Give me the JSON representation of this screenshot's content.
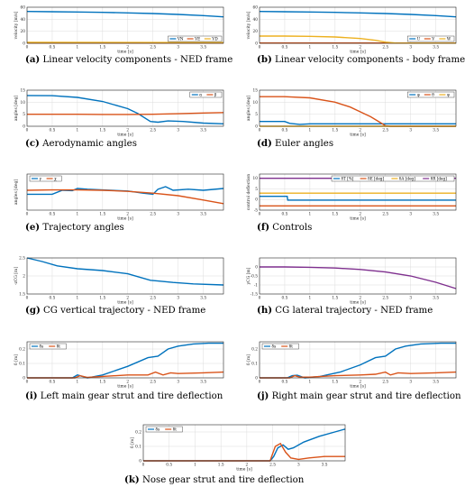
{
  "colors": {
    "blue": "#0072BD",
    "orange": "#D95319",
    "yellow": "#EDB120",
    "purple": "#7E2F8E"
  },
  "chart_data": [
    {
      "type": "line",
      "caption_letter": "(a)",
      "caption_text": "Linear velocity components - NED frame",
      "xlabel": "time [s]",
      "ylabel": "velocity [m/s]",
      "xlim": [
        0,
        3.9
      ],
      "ylim": [
        0,
        60
      ],
      "xticks": [
        "0",
        "0.5",
        "1",
        "1.5",
        "2",
        "2.5",
        "3",
        "3.5"
      ],
      "yticks": [
        "0",
        "20",
        "40",
        "60"
      ],
      "legend_position": "bottom-right",
      "series": [
        {
          "name": "VN",
          "color": "#0072BD",
          "x": [
            0,
            0.5,
            1,
            1.5,
            2,
            2.5,
            3,
            3.5,
            3.9
          ],
          "y": [
            53,
            52.5,
            52,
            51.5,
            50.5,
            49.5,
            48,
            46,
            44
          ]
        },
        {
          "name": "VE",
          "color": "#D95319",
          "x": [
            0,
            3.9
          ],
          "y": [
            0.5,
            0.5
          ]
        },
        {
          "name": "VD",
          "color": "#EDB120",
          "x": [
            0,
            3.9
          ],
          "y": [
            1.5,
            1.2
          ]
        }
      ]
    },
    {
      "type": "line",
      "caption_letter": "(b)",
      "caption_text": "Linear velocity components - body frame",
      "xlabel": "time [s]",
      "ylabel": "velocity [m/s]",
      "xlim": [
        0,
        3.9
      ],
      "ylim": [
        0,
        60
      ],
      "xticks": [
        "0",
        "0.5",
        "1",
        "1.5",
        "2",
        "2.5",
        "3",
        "3.5"
      ],
      "yticks": [
        "0",
        "20",
        "40",
        "60"
      ],
      "legend_position": "bottom-right",
      "series": [
        {
          "name": "U",
          "color": "#0072BD",
          "x": [
            0,
            0.5,
            1,
            1.5,
            2,
            2.5,
            3,
            3.5,
            3.9
          ],
          "y": [
            53,
            52.5,
            52,
            51.5,
            50.5,
            49.5,
            48,
            46,
            44
          ]
        },
        {
          "name": "V",
          "color": "#D95319",
          "x": [
            0,
            3.9
          ],
          "y": [
            0.5,
            0.5
          ]
        },
        {
          "name": "W",
          "color": "#EDB120",
          "x": [
            0,
            0.5,
            1,
            1.5,
            2,
            2.3,
            2.5,
            2.7,
            3,
            3.9
          ],
          "y": [
            12,
            12,
            11.5,
            10.5,
            8,
            5,
            2,
            0.5,
            0.3,
            0.3
          ]
        }
      ]
    },
    {
      "type": "line",
      "caption_letter": "(c)",
      "caption_text": "Aerodynamic angles",
      "xlabel": "time [s]",
      "ylabel": "angles [deg]",
      "xlim": [
        0,
        3.9
      ],
      "ylim": [
        0,
        15
      ],
      "xticks": [
        "0",
        "0.5",
        "1",
        "1.5",
        "2",
        "2.5",
        "3",
        "3.5"
      ],
      "yticks": [
        "0",
        "5",
        "10",
        "15"
      ],
      "legend_position": "top-right",
      "series": [
        {
          "name": "α",
          "color": "#0072BD",
          "x": [
            0,
            0.5,
            1,
            1.5,
            2,
            2.2,
            2.45,
            2.6,
            2.8,
            3.1,
            3.5,
            3.9
          ],
          "y": [
            12.8,
            12.7,
            12,
            10.3,
            7.3,
            5.3,
            2,
            1.7,
            2.2,
            2,
            1.3,
            1
          ]
        },
        {
          "name": "β",
          "color": "#D95319",
          "x": [
            0,
            0.5,
            1,
            1.5,
            2,
            2.5,
            3,
            3.5,
            3.9
          ],
          "y": [
            5,
            5,
            5,
            4.9,
            4.9,
            5,
            5.2,
            5.5,
            5.7
          ]
        }
      ]
    },
    {
      "type": "line",
      "caption_letter": "(d)",
      "caption_text": "Euler angles",
      "xlabel": "time [s]",
      "ylabel": "angles [deg]",
      "xlim": [
        0,
        3.9
      ],
      "ylim": [
        0,
        15
      ],
      "xticks": [
        "0",
        "0.5",
        "1",
        "1.5",
        "2",
        "2.5",
        "3",
        "3.5"
      ],
      "yticks": [
        "0",
        "5",
        "10",
        "15"
      ],
      "legend_position": "top-right",
      "series": [
        {
          "name": "φ",
          "color": "#0072BD",
          "x": [
            0,
            0.5,
            0.6,
            0.8,
            1,
            1.5,
            2,
            2.5,
            3,
            3.9
          ],
          "y": [
            2,
            2,
            1.2,
            0.8,
            1,
            1,
            1,
            1,
            1,
            1
          ]
        },
        {
          "name": "θ",
          "color": "#D95319",
          "x": [
            0,
            0.5,
            1,
            1.5,
            1.8,
            2,
            2.2,
            2.4,
            2.5,
            2.6,
            3.9
          ],
          "y": [
            12.3,
            12.3,
            11.8,
            10,
            8,
            6,
            4,
            1.5,
            0.2,
            0,
            0
          ]
        },
        {
          "name": "ψ",
          "color": "#EDB120",
          "x": [
            0,
            3.9
          ],
          "y": [
            0,
            0
          ]
        }
      ]
    },
    {
      "type": "line",
      "caption_letter": "(e)",
      "caption_text": "Trajectory angles",
      "xlabel": "time [s]",
      "ylabel": "angles [deg]",
      "xlim": [
        0,
        3.9
      ],
      "ylim": [
        -5,
        5
      ],
      "xticks": [
        "0",
        "0.5",
        "1",
        "1.5",
        "2",
        "2.5",
        "3",
        "3.5"
      ],
      "yticks": [],
      "legend_position": "top-left",
      "series": [
        {
          "name": "γ",
          "color": "#0072BD",
          "x": [
            0,
            0.5,
            0.7,
            0.9,
            1,
            1.2,
            1.5,
            2,
            2.3,
            2.5,
            2.6,
            2.75,
            2.9,
            3.2,
            3.5,
            3.9
          ],
          "y": [
            -0.6,
            -0.6,
            0.5,
            0.4,
            1,
            0.8,
            0.6,
            0.3,
            -0.3,
            -0.6,
            0.8,
            1.5,
            0.5,
            0.8,
            0.5,
            1
          ]
        },
        {
          "name": "χ",
          "color": "#D95319",
          "x": [
            0,
            0.5,
            1,
            1.5,
            2,
            2.5,
            3,
            3.5,
            3.9
          ],
          "y": [
            0.5,
            0.6,
            0.6,
            0.5,
            0.2,
            -0.3,
            -1,
            -2.2,
            -3.2
          ]
        }
      ]
    },
    {
      "type": "line",
      "caption_letter": "(f)",
      "caption_text": "Controls",
      "xlabel": "time [s]",
      "ylabel": "control deflection",
      "xlim": [
        0,
        3.9
      ],
      "ylim": [
        -5,
        12
      ],
      "xticks": [
        "0",
        "0.5",
        "1",
        "1.5",
        "2",
        "2.5",
        "3",
        "3.5"
      ],
      "yticks": [
        "-5",
        "0",
        "5",
        "10"
      ],
      "legend_position": "top-right",
      "series": [
        {
          "name": "δT [%]",
          "color": "#0072BD",
          "x": [
            0,
            0.55,
            0.56,
            3.9
          ],
          "y": [
            1.5,
            1.5,
            -0.3,
            -0.3
          ]
        },
        {
          "name": "δE [deg]",
          "color": "#D95319",
          "x": [
            0,
            3.9
          ],
          "y": [
            -3,
            -3
          ]
        },
        {
          "name": "δA [deg]",
          "color": "#EDB120",
          "x": [
            0,
            3.9
          ],
          "y": [
            3,
            3
          ]
        },
        {
          "name": "δR [deg]",
          "color": "#7E2F8E",
          "x": [
            0,
            3.9
          ],
          "y": [
            10,
            10
          ]
        }
      ]
    },
    {
      "type": "line",
      "caption_letter": "(g)",
      "caption_text": "CG vertical trajectory - NED frame",
      "xlabel": "time [s]",
      "ylabel": "-zCG [m]",
      "xlim": [
        0,
        3.9
      ],
      "ylim": [
        1.5,
        2.5
      ],
      "xticks": [
        "0",
        "0.5",
        "1",
        "1.5",
        "2",
        "2.5",
        "3",
        "3.5"
      ],
      "yticks": [
        "1.5",
        "2",
        "2.5"
      ],
      "legend_position": "none",
      "series": [
        {
          "name": "",
          "color": "#0072BD",
          "x": [
            0,
            0.3,
            0.6,
            1,
            1.5,
            2,
            2.2,
            2.45,
            2.6,
            2.9,
            3.3,
            3.9
          ],
          "y": [
            2.5,
            2.4,
            2.28,
            2.2,
            2.15,
            2.06,
            1.98,
            1.88,
            1.86,
            1.82,
            1.78,
            1.75
          ]
        }
      ]
    },
    {
      "type": "line",
      "caption_letter": "(h)",
      "caption_text": "CG lateral trajectory - NED frame",
      "xlabel": "time [s]",
      "ylabel": "yCG [m]",
      "xlim": [
        0,
        3.9
      ],
      "ylim": [
        -1.5,
        0.5
      ],
      "xticks": [
        "0",
        "0.5",
        "1",
        "1.5",
        "2",
        "2.5",
        "3",
        "3.5"
      ],
      "yticks": [
        "-1.5",
        "-1",
        "-0.5",
        "0"
      ],
      "legend_position": "none",
      "series": [
        {
          "name": "",
          "color": "#7E2F8E",
          "x": [
            0,
            0.5,
            1,
            1.5,
            2,
            2.5,
            3,
            3.5,
            3.9
          ],
          "y": [
            0,
            0,
            -0.02,
            -0.06,
            -0.14,
            -0.28,
            -0.5,
            -0.85,
            -1.2
          ]
        }
      ]
    },
    {
      "type": "line",
      "caption_letter": "(i)",
      "caption_text": "Left main gear strut and tire deflection",
      "xlabel": "time [s]",
      "ylabel": "δ [m]",
      "xlim": [
        0,
        3.9
      ],
      "ylim": [
        0,
        0.25
      ],
      "xticks": [
        "0",
        "0.5",
        "1",
        "1.5",
        "2",
        "2.5",
        "3",
        "3.5"
      ],
      "yticks": [
        "0",
        "0.1",
        "0.2"
      ],
      "legend_position": "top-left",
      "series": [
        {
          "name": "δs",
          "color": "#0072BD",
          "x": [
            0,
            0.9,
            1,
            1.1,
            1.2,
            1.5,
            2,
            2.4,
            2.6,
            2.8,
            3,
            3.3,
            3.6,
            3.9
          ],
          "y": [
            0,
            0,
            0.02,
            0.01,
            0,
            0.02,
            0.08,
            0.14,
            0.15,
            0.2,
            0.22,
            0.235,
            0.24,
            0.24
          ]
        },
        {
          "name": "δt",
          "color": "#D95319",
          "x": [
            0,
            0.95,
            1.05,
            1.2,
            1.5,
            2,
            2.4,
            2.55,
            2.7,
            2.85,
            3,
            3.5,
            3.9
          ],
          "y": [
            0,
            0,
            0.015,
            0.003,
            0.01,
            0.02,
            0.02,
            0.04,
            0.02,
            0.035,
            0.03,
            0.035,
            0.04
          ]
        }
      ]
    },
    {
      "type": "line",
      "caption_letter": "(j)",
      "caption_text": "Right main gear strut and tire deflection",
      "xlabel": "time [s]",
      "ylabel": "δ [m]",
      "xlim": [
        0,
        3.9
      ],
      "ylim": [
        0,
        0.25
      ],
      "xticks": [
        "0",
        "0.5",
        "1",
        "1.5",
        "2",
        "2.5",
        "3",
        "3.5"
      ],
      "yticks": [
        "0",
        "0.1",
        "0.2"
      ],
      "legend_position": "top-left",
      "series": [
        {
          "name": "δs",
          "color": "#0072BD",
          "x": [
            0,
            0.55,
            0.65,
            0.75,
            0.9,
            1.2,
            1.6,
            2,
            2.3,
            2.5,
            2.7,
            2.9,
            3.2,
            3.6,
            3.9
          ],
          "y": [
            0,
            0,
            0.015,
            0.018,
            0,
            0.01,
            0.04,
            0.09,
            0.14,
            0.15,
            0.2,
            0.22,
            0.235,
            0.24,
            0.24
          ]
        },
        {
          "name": "δt",
          "color": "#D95319",
          "x": [
            0,
            0.6,
            0.7,
            0.8,
            1,
            1.5,
            2,
            2.3,
            2.5,
            2.6,
            2.75,
            3,
            3.5,
            3.9
          ],
          "y": [
            0,
            0,
            0.015,
            0.005,
            0.005,
            0.015,
            0.02,
            0.025,
            0.04,
            0.02,
            0.035,
            0.03,
            0.035,
            0.04
          ]
        }
      ]
    },
    {
      "type": "line",
      "caption_letter": "(k)",
      "caption_text": "Nose gear strut and tire deflection",
      "xlabel": "time [s]",
      "ylabel": "δ [m]",
      "xlim": [
        0,
        3.9
      ],
      "ylim": [
        0,
        0.25
      ],
      "xticks": [
        "0",
        "0.5",
        "1",
        "1.5",
        "2",
        "2.5",
        "3",
        "3.5"
      ],
      "yticks": [
        "0",
        "0.1",
        "0.2"
      ],
      "legend_position": "top-left",
      "series": [
        {
          "name": "δs",
          "color": "#0072BD",
          "x": [
            0,
            2.45,
            2.52,
            2.6,
            2.7,
            2.8,
            2.9,
            3.1,
            3.4,
            3.7,
            3.9
          ],
          "y": [
            0,
            0,
            0.03,
            0.09,
            0.11,
            0.08,
            0.09,
            0.13,
            0.17,
            0.2,
            0.22
          ]
        },
        {
          "name": "δt",
          "color": "#D95319",
          "x": [
            0,
            2.45,
            2.55,
            2.65,
            2.75,
            2.85,
            3,
            3.2,
            3.5,
            3.9
          ],
          "y": [
            0,
            0,
            0.1,
            0.12,
            0.06,
            0.02,
            0.01,
            0.02,
            0.03,
            0.03
          ]
        }
      ]
    }
  ]
}
